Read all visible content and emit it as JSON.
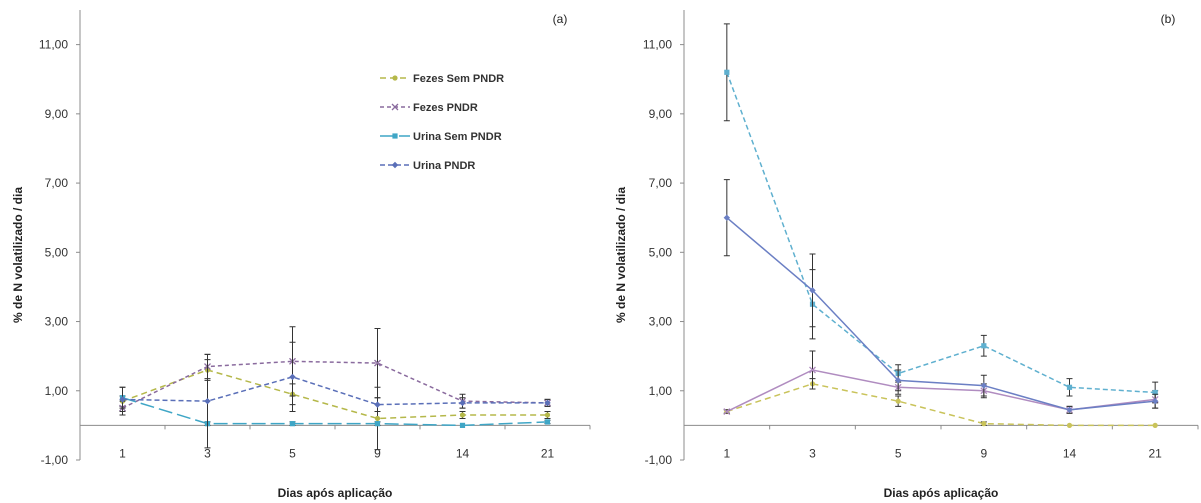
{
  "chart_data": [
    {
      "type": "line",
      "panel_label": "(a)",
      "categories": [
        "1",
        "3",
        "5",
        "9",
        "14",
        "21"
      ],
      "xlabel": "Dias após aplicação",
      "ylabel": "% de N volatilizado / dia",
      "ylim": [
        -1,
        12
      ],
      "yticks": [
        "-1,00",
        "1,00",
        "3,00",
        "5,00",
        "7,00",
        "9,00",
        "11,00"
      ],
      "ytick_values": [
        -1,
        1,
        3,
        5,
        7,
        9,
        11
      ],
      "legend_position": "top-center",
      "grid": false,
      "series": [
        {
          "name": "Fezes Sem PNDR",
          "color": "#b5b84a",
          "dash": "6,4",
          "marker": "circle",
          "values": [
            0.7,
            1.6,
            0.9,
            0.2,
            0.3,
            0.3
          ],
          "errors": [
            0.15,
            0.3,
            0.3,
            0.9,
            0.1,
            0.1
          ]
        },
        {
          "name": "Fezes PNDR",
          "color": "#8a6b9e",
          "dash": "4,3",
          "marker": "cross",
          "values": [
            0.5,
            1.7,
            1.85,
            1.8,
            0.7,
            0.65
          ],
          "errors": [
            0.2,
            0.35,
            1.0,
            1.0,
            0.2,
            0.1
          ]
        },
        {
          "name": "Urina Sem PNDR",
          "color": "#3fa6c6",
          "dash": "14,5",
          "marker": "square",
          "values": [
            0.8,
            0.05,
            0.05,
            0.05,
            0.0,
            0.1
          ],
          "errors": [
            0.3,
            0.05,
            0.05,
            0.05,
            0.0,
            0.05
          ]
        },
        {
          "name": "Urina PNDR",
          "color": "#5a6fb8",
          "dash": "5,3",
          "marker": "diamond",
          "values": [
            0.75,
            0.7,
            1.4,
            0.6,
            0.65,
            0.65
          ],
          "errors": [
            0.35,
            1.35,
            1.0,
            0.2,
            0.15,
            0.1
          ]
        }
      ]
    },
    {
      "type": "line",
      "panel_label": "(b)",
      "categories": [
        "1",
        "3",
        "5",
        "9",
        "14",
        "21"
      ],
      "xlabel": "Dias após aplicação",
      "ylabel": "% de N volatilizado / dia",
      "ylim": [
        -1,
        12
      ],
      "yticks": [
        "-1,00",
        "1,00",
        "3,00",
        "5,00",
        "7,00",
        "9,00",
        "11,00"
      ],
      "ytick_values": [
        -1,
        1,
        3,
        5,
        7,
        9,
        11
      ],
      "grid": false,
      "series": [
        {
          "name": "Fezes Sem PNDR",
          "color": "#c9c35a",
          "dash": "6,4",
          "marker": "circle",
          "values": [
            0.4,
            1.2,
            0.7,
            0.05,
            0.0,
            0.0
          ],
          "errors": [
            0.05,
            0.15,
            0.15,
            0.05,
            0.0,
            0.0
          ]
        },
        {
          "name": "Fezes PNDR",
          "color": "#b08cc0",
          "dash": "",
          "marker": "cross",
          "values": [
            0.4,
            1.6,
            1.1,
            1.0,
            0.45,
            0.75
          ],
          "errors": [
            0.05,
            0.55,
            0.2,
            0.2,
            0.1,
            0.25
          ]
        },
        {
          "name": "Urina Sem PNDR",
          "color": "#5fb0cf",
          "dash": "5,3",
          "marker": "square",
          "values": [
            10.2,
            3.5,
            1.5,
            2.3,
            1.1,
            0.95
          ],
          "errors": [
            1.4,
            1.0,
            0.25,
            0.3,
            0.25,
            0.3
          ]
        },
        {
          "name": "Urina PNDR",
          "color": "#6b7fc4",
          "dash": "",
          "marker": "diamond",
          "values": [
            6.0,
            3.9,
            1.3,
            1.15,
            0.45,
            0.7
          ],
          "errors": [
            1.1,
            1.05,
            0.3,
            0.3,
            0.1,
            0.2
          ]
        }
      ]
    }
  ]
}
